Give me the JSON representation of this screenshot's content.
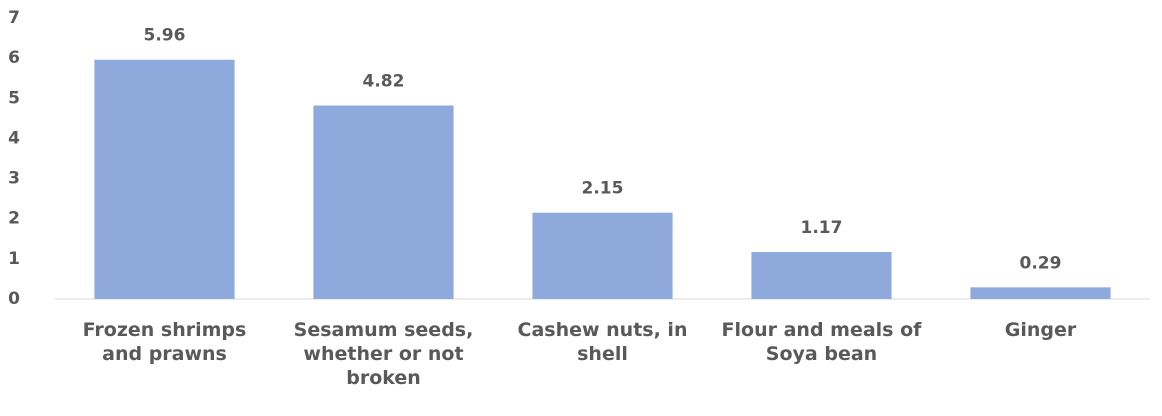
{
  "chart_data": {
    "type": "bar",
    "categories": [
      "Frozen shrimps and prawns",
      "Sesamum seeds, whether or not broken",
      "Cashew nuts, in shell",
      "Flour and meals of Soya bean",
      "Ginger"
    ],
    "values": [
      5.96,
      4.82,
      2.15,
      1.17,
      0.29
    ],
    "color": "#8eaadc",
    "ylim": [
      0,
      7
    ],
    "yticks": [
      0,
      1,
      2,
      3,
      4,
      5,
      6,
      7
    ],
    "grid": false
  }
}
